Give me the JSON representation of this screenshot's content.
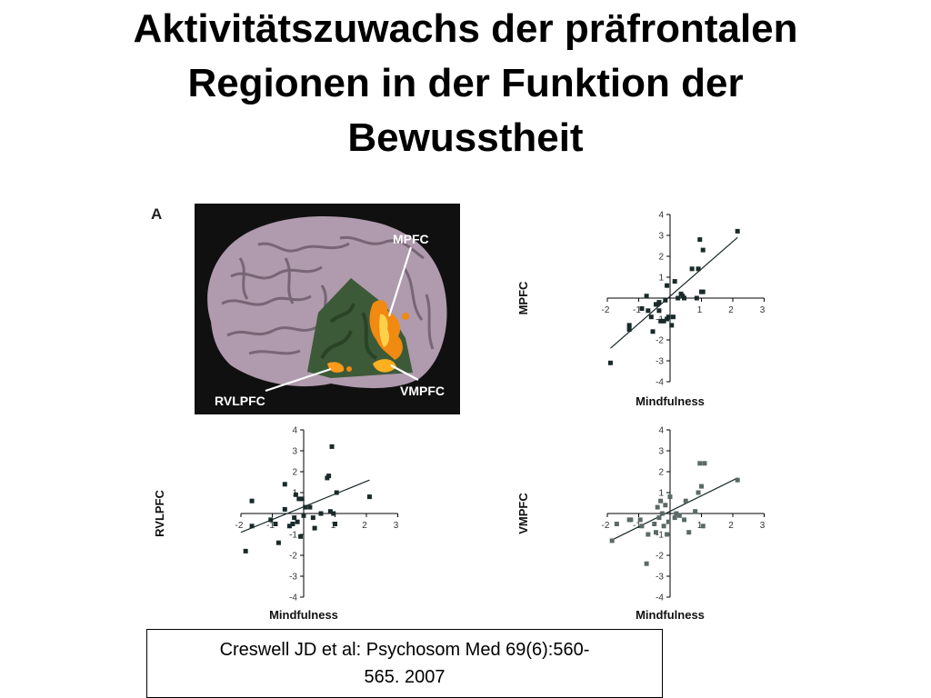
{
  "slide": {
    "title_lines": [
      "Aktivitätszuwachs der präfrontalen",
      "Regionen in der Funktion der",
      "Bewusstheit"
    ],
    "citation_lines": [
      "Creswell JD et al: Psychosom Med 69(6):560-",
      "565. 2007"
    ]
  },
  "panel_a": {
    "letter": "A",
    "labels": {
      "mpfc": "MPFC",
      "vmpfc": "VMPFC",
      "rvlpfc": "RVLPFC"
    },
    "colors": {
      "background": "#101010",
      "brain": "#b09aad",
      "region": "#3d5a38",
      "activation": "#f08a10"
    }
  },
  "chart_data": [
    {
      "type": "scatter",
      "panel": "B",
      "title": "",
      "xlabel": "Mindfulness",
      "ylabel": "MPFC",
      "xlim": [
        -2,
        3
      ],
      "ylim": [
        -4,
        4
      ],
      "xticks": [
        -2,
        -1,
        1,
        2,
        3
      ],
      "yticks": [
        -4,
        -3,
        -2,
        -1,
        1,
        2,
        3,
        4
      ],
      "x_tick_labels": [
        "-2",
        "-1",
        "1",
        "2",
        "3"
      ],
      "y_tick_labels": [
        "-4",
        "-3",
        "-2",
        "-1",
        "1",
        "2",
        "3",
        "4"
      ],
      "marker_color": "#1a2a2a",
      "points": [
        {
          "x": -1.9,
          "y": -3.1
        },
        {
          "x": -1.3,
          "y": -1.3
        },
        {
          "x": -1.3,
          "y": -1.5
        },
        {
          "x": -0.9,
          "y": -0.5
        },
        {
          "x": -0.75,
          "y": 0.1
        },
        {
          "x": -0.7,
          "y": -0.6
        },
        {
          "x": -0.6,
          "y": -0.9
        },
        {
          "x": -0.55,
          "y": -1.6
        },
        {
          "x": -0.45,
          "y": -0.3
        },
        {
          "x": -0.4,
          "y": -0.3
        },
        {
          "x": -0.35,
          "y": -0.2
        },
        {
          "x": -0.35,
          "y": -0.6
        },
        {
          "x": -0.3,
          "y": -1.1
        },
        {
          "x": -0.2,
          "y": -1.1
        },
        {
          "x": -0.15,
          "y": -0.1
        },
        {
          "x": -0.1,
          "y": 0.6
        },
        {
          "x": -0.1,
          "y": -1.0
        },
        {
          "x": -0.05,
          "y": -0.9
        },
        {
          "x": 0.05,
          "y": -1.3
        },
        {
          "x": 0.1,
          "y": -0.9
        },
        {
          "x": 0.15,
          "y": 0.8
        },
        {
          "x": 0.25,
          "y": 0.0
        },
        {
          "x": 0.35,
          "y": 0.2
        },
        {
          "x": 0.4,
          "y": 0.1
        },
        {
          "x": 0.45,
          "y": 0.0
        },
        {
          "x": 0.7,
          "y": 1.4
        },
        {
          "x": 0.85,
          "y": 0.0
        },
        {
          "x": 0.9,
          "y": 1.4
        },
        {
          "x": 0.95,
          "y": 2.8
        },
        {
          "x": 1.0,
          "y": 0.3
        },
        {
          "x": 1.05,
          "y": 0.3
        },
        {
          "x": 1.05,
          "y": 2.3
        },
        {
          "x": 2.15,
          "y": 3.2
        }
      ],
      "fit_line": [
        {
          "x": -1.9,
          "y": -2.4
        },
        {
          "x": 2.15,
          "y": 2.9
        }
      ]
    },
    {
      "type": "scatter",
      "panel": "C",
      "title": "",
      "xlabel": "Mindfulness",
      "ylabel": "RVLPFC",
      "xlim": [
        -2,
        3
      ],
      "ylim": [
        -4,
        4
      ],
      "xticks": [
        -2,
        -1,
        1,
        2,
        3
      ],
      "yticks": [
        -4,
        -3,
        -2,
        -1,
        1,
        2,
        3,
        4
      ],
      "x_tick_labels": [
        "-2",
        "-1",
        "1",
        "2",
        "3"
      ],
      "y_tick_labels": [
        "-4",
        "-3",
        "-2",
        "-1",
        "1",
        "2",
        "3",
        "4"
      ],
      "marker_color": "#1a2a2a",
      "points": [
        {
          "x": -1.85,
          "y": -1.8
        },
        {
          "x": -1.65,
          "y": 0.6
        },
        {
          "x": -1.65,
          "y": -0.6
        },
        {
          "x": -1.05,
          "y": -0.3
        },
        {
          "x": -0.9,
          "y": -0.5
        },
        {
          "x": -0.8,
          "y": -1.4
        },
        {
          "x": -0.6,
          "y": 1.4
        },
        {
          "x": -0.6,
          "y": 0.2
        },
        {
          "x": -0.45,
          "y": -0.6
        },
        {
          "x": -0.35,
          "y": -0.5
        },
        {
          "x": -0.3,
          "y": -0.2
        },
        {
          "x": -0.25,
          "y": 0.9
        },
        {
          "x": -0.2,
          "y": -0.4
        },
        {
          "x": -0.15,
          "y": 0.7
        },
        {
          "x": -0.1,
          "y": -1.1
        },
        {
          "x": -0.05,
          "y": 0.7
        },
        {
          "x": 0.0,
          "y": -0.1
        },
        {
          "x": 0.05,
          "y": 0.3
        },
        {
          "x": 0.2,
          "y": 0.3
        },
        {
          "x": 0.3,
          "y": -0.2
        },
        {
          "x": 0.35,
          "y": -0.7
        },
        {
          "x": 0.55,
          "y": 0.0
        },
        {
          "x": 0.75,
          "y": 1.7
        },
        {
          "x": 0.8,
          "y": 1.8
        },
        {
          "x": 0.85,
          "y": 0.1
        },
        {
          "x": 0.9,
          "y": 3.2
        },
        {
          "x": 0.95,
          "y": 0.0
        },
        {
          "x": 1.0,
          "y": -0.5
        },
        {
          "x": 1.05,
          "y": 1.0
        },
        {
          "x": 2.1,
          "y": 0.8
        }
      ],
      "fit_line": [
        {
          "x": -2.0,
          "y": -0.9
        },
        {
          "x": 2.1,
          "y": 1.6
        }
      ]
    },
    {
      "type": "scatter",
      "panel": "D",
      "title": "",
      "xlabel": "Mindfulness",
      "ylabel": "VMPFC",
      "xlim": [
        -2,
        3
      ],
      "ylim": [
        -4,
        4
      ],
      "xticks": [
        -2,
        -1,
        1,
        2,
        3
      ],
      "yticks": [
        -4,
        -3,
        -2,
        -1,
        1,
        2,
        3,
        4
      ],
      "x_tick_labels": [
        "-2",
        "-1",
        "1",
        "2",
        "3"
      ],
      "y_tick_labels": [
        "-4",
        "-3",
        "-2",
        "-1",
        "1",
        "2",
        "3",
        "4"
      ],
      "marker_color": "#5a6a66",
      "points": [
        {
          "x": -1.85,
          "y": -1.3
        },
        {
          "x": -1.7,
          "y": -0.5
        },
        {
          "x": -1.3,
          "y": -0.3
        },
        {
          "x": -1.25,
          "y": -0.3
        },
        {
          "x": -0.95,
          "y": -0.3
        },
        {
          "x": -0.9,
          "y": -0.6
        },
        {
          "x": -0.75,
          "y": -2.4
        },
        {
          "x": -0.7,
          "y": -1.0
        },
        {
          "x": -0.5,
          "y": -0.5
        },
        {
          "x": -0.45,
          "y": -0.9
        },
        {
          "x": -0.4,
          "y": 0.3
        },
        {
          "x": -0.35,
          "y": -0.2
        },
        {
          "x": -0.3,
          "y": 0.6
        },
        {
          "x": -0.25,
          "y": 0.0
        },
        {
          "x": -0.2,
          "y": -0.6
        },
        {
          "x": -0.15,
          "y": 0.4
        },
        {
          "x": -0.1,
          "y": -1.0
        },
        {
          "x": -0.05,
          "y": -0.4
        },
        {
          "x": 0.0,
          "y": 0.8
        },
        {
          "x": 0.15,
          "y": -0.2
        },
        {
          "x": 0.2,
          "y": 0.0
        },
        {
          "x": 0.3,
          "y": -0.1
        },
        {
          "x": 0.45,
          "y": -0.3
        },
        {
          "x": 0.5,
          "y": 0.6
        },
        {
          "x": 0.6,
          "y": -0.9
        },
        {
          "x": 0.8,
          "y": 0.1
        },
        {
          "x": 0.9,
          "y": 1.0
        },
        {
          "x": 0.95,
          "y": 2.4
        },
        {
          "x": 1.0,
          "y": 1.3
        },
        {
          "x": 1.05,
          "y": -0.6
        },
        {
          "x": 1.1,
          "y": 2.4
        },
        {
          "x": 2.15,
          "y": 1.6
        }
      ],
      "fit_line": [
        {
          "x": -1.9,
          "y": -1.3
        },
        {
          "x": 2.15,
          "y": 1.7
        }
      ]
    }
  ]
}
